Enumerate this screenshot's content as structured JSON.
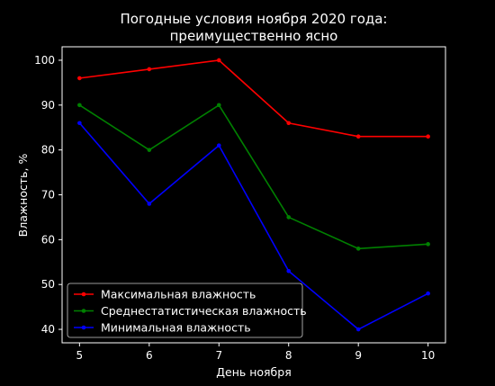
{
  "chart_data": {
    "type": "line",
    "title": "Погодные условия ноября 2020 года:",
    "subtitle": "преимущественно ясно",
    "xlabel": "День ноября",
    "ylabel": "Влажность, %",
    "x": [
      5,
      6,
      7,
      8,
      9,
      10
    ],
    "xlim": [
      4.75,
      10.25
    ],
    "ylim": [
      37,
      103
    ],
    "xticks": [
      "5",
      "6",
      "7",
      "8",
      "9",
      "10"
    ],
    "yticks": [
      "40",
      "50",
      "60",
      "70",
      "80",
      "90",
      "100"
    ],
    "grid": false,
    "legend_position": "lower-left",
    "background": "#000000",
    "series": [
      {
        "name": "Максимальная влажность",
        "color": "#ff0000",
        "values": [
          96,
          98,
          100,
          86,
          83,
          83
        ]
      },
      {
        "name": "Среднестатистическая влажность",
        "color": "#008000",
        "values": [
          90,
          80,
          90,
          65,
          58,
          59
        ]
      },
      {
        "name": "Минимальная влажность",
        "color": "#0000ff",
        "values": [
          86,
          68,
          81,
          53,
          40,
          48
        ]
      }
    ]
  }
}
